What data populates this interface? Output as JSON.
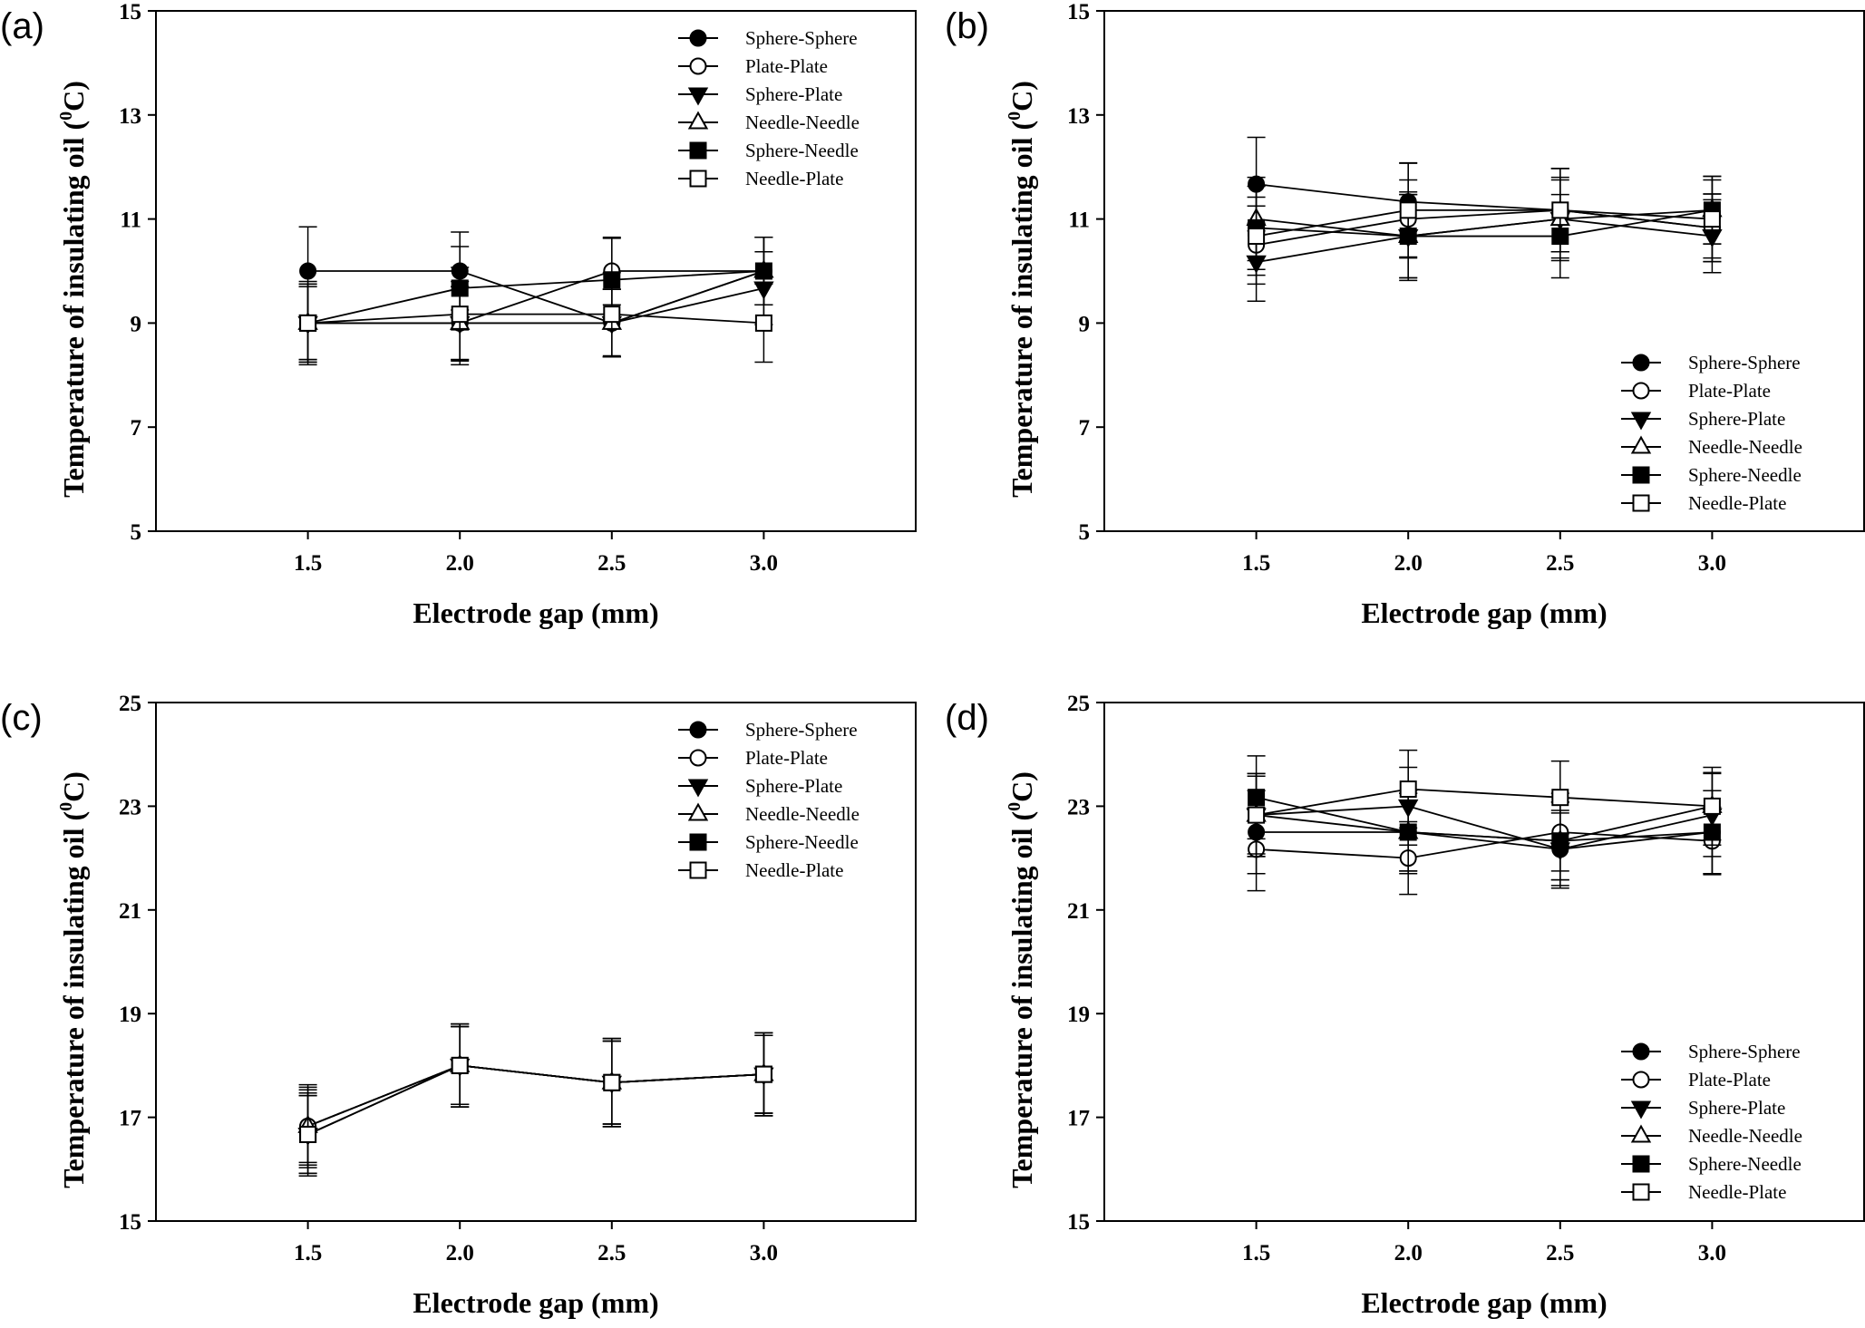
{
  "figure": {
    "panels": [
      "(a)",
      "(b)",
      "(c)",
      "(d)"
    ]
  },
  "chart_data": [
    {
      "panel": "(a)",
      "type": "line",
      "title": "",
      "xlabel": "Electrode gap (mm)",
      "ylabel": "Temperature of insulating oil (",
      "ylabel_sup": "0",
      "ylabel_unit": "C)",
      "xlim": [
        1.0,
        3.5
      ],
      "ylim": [
        5,
        15
      ],
      "x": [
        1.5,
        2.0,
        2.5,
        3.0
      ],
      "x_tick_labels": [
        "1.5",
        "2.0",
        "2.5",
        "3.0"
      ],
      "y_ticks": [
        5,
        7,
        9,
        11,
        13,
        15
      ],
      "y_tick_labels": [
        "5",
        "7",
        "9",
        "11",
        "13",
        "15"
      ],
      "legend_position": "top-right",
      "series": [
        {
          "name": "Sphere-Sphere",
          "marker": "circle-filled",
          "values": [
            10.0,
            10.0,
            9.0,
            10.0
          ],
          "errors": [
            0.85,
            0.75,
            0.65,
            0.65
          ]
        },
        {
          "name": "Plate-Plate",
          "marker": "circle-open",
          "values": [
            9.0,
            9.0,
            10.0,
            10.0
          ],
          "errors": [
            0.8,
            0.7,
            0.65,
            0.65
          ]
        },
        {
          "name": "Sphere-Plate",
          "marker": "triangle-down-filled",
          "values": [
            9.0,
            9.0,
            9.0,
            9.67
          ],
          "errors": [
            0.7,
            0.7,
            0.65,
            0.7
          ]
        },
        {
          "name": "Needle-Needle",
          "marker": "triangle-up-open",
          "values": [
            9.0,
            9.0,
            9.0,
            10.0
          ],
          "errors": [
            0.75,
            0.8,
            0.65,
            0.65
          ]
        },
        {
          "name": "Sphere-Needle",
          "marker": "square-filled",
          "values": [
            9.0,
            9.67,
            9.83,
            10.0
          ],
          "errors": [
            0.7,
            0.8,
            0.8,
            0.65
          ]
        },
        {
          "name": "Needle-Plate",
          "marker": "square-open",
          "values": [
            9.0,
            9.17,
            9.17,
            9.0
          ],
          "errors": [
            0.75,
            0.9,
            0.8,
            0.75
          ]
        }
      ]
    },
    {
      "panel": "(b)",
      "type": "line",
      "title": "",
      "xlabel": "Electrode gap (mm)",
      "ylabel": "Temperature of insulating oil (",
      "ylabel_sup": "0",
      "ylabel_unit": "C)",
      "xlim": [
        1.0,
        3.5
      ],
      "ylim": [
        5,
        15
      ],
      "x": [
        1.5,
        2.0,
        2.5,
        3.0
      ],
      "x_tick_labels": [
        "1.5",
        "2.0",
        "2.5",
        "3.0"
      ],
      "y_ticks": [
        5,
        7,
        9,
        11,
        13,
        15
      ],
      "y_tick_labels": [
        "5",
        "7",
        "9",
        "11",
        "13",
        "15"
      ],
      "legend_position": "bottom-right",
      "series": [
        {
          "name": "Sphere-Sphere",
          "marker": "circle-filled",
          "values": [
            11.67,
            11.33,
            11.17,
            10.83
          ],
          "errors": [
            0.9,
            0.75,
            0.8,
            0.65
          ]
        },
        {
          "name": "Plate-Plate",
          "marker": "circle-open",
          "values": [
            10.5,
            11.0,
            11.17,
            10.83
          ],
          "errors": [
            0.75,
            0.75,
            0.8,
            0.65
          ]
        },
        {
          "name": "Sphere-Plate",
          "marker": "triangle-down-filled",
          "values": [
            10.17,
            10.67,
            11.0,
            10.67
          ],
          "errors": [
            0.75,
            0.8,
            0.8,
            0.7
          ]
        },
        {
          "name": "Needle-Needle",
          "marker": "triangle-up-open",
          "values": [
            11.0,
            10.67,
            11.0,
            11.17
          ],
          "errors": [
            0.8,
            0.8,
            0.75,
            0.65
          ]
        },
        {
          "name": "Sphere-Needle",
          "marker": "square-filled",
          "values": [
            10.83,
            10.67,
            10.67,
            11.17
          ],
          "errors": [
            0.8,
            0.85,
            0.8,
            0.65
          ]
        },
        {
          "name": "Needle-Plate",
          "marker": "square-open",
          "values": [
            10.67,
            11.17,
            11.17,
            11.0
          ],
          "errors": [
            0.75,
            0.9,
            0.8,
            0.75
          ]
        }
      ]
    },
    {
      "panel": "(c)",
      "type": "line",
      "title": "",
      "xlabel": "Electrode gap (mm)",
      "ylabel": "Temperature of insulating oil (",
      "ylabel_sup": "0",
      "ylabel_unit": "C)",
      "xlim": [
        1.0,
        3.5
      ],
      "ylim": [
        15,
        25
      ],
      "x": [
        1.5,
        2.0,
        2.5,
        3.0
      ],
      "x_tick_labels": [
        "1.5",
        "2.0",
        "2.5",
        "3.0"
      ],
      "y_ticks": [
        15,
        17,
        19,
        21,
        23,
        25
      ],
      "y_tick_labels": [
        "15",
        "17",
        "19",
        "21",
        "23",
        "25"
      ],
      "legend_position": "top-right",
      "series": [
        {
          "name": "Sphere-Sphere",
          "marker": "circle-filled",
          "values": [
            16.83,
            18.0,
            17.67,
            17.83
          ],
          "errors": [
            0.75,
            0.8,
            0.85,
            0.8
          ]
        },
        {
          "name": "Plate-Plate",
          "marker": "circle-open",
          "values": [
            16.83,
            18.0,
            17.67,
            17.83
          ],
          "errors": [
            0.7,
            0.75,
            0.8,
            0.75
          ]
        },
        {
          "name": "Sphere-Plate",
          "marker": "triangle-down-filled",
          "values": [
            16.67,
            18.0,
            17.67,
            17.83
          ],
          "errors": [
            0.75,
            0.8,
            0.85,
            0.8
          ]
        },
        {
          "name": "Needle-Needle",
          "marker": "triangle-up-open",
          "values": [
            16.83,
            18.0,
            17.67,
            17.83
          ],
          "errors": [
            0.8,
            0.75,
            0.8,
            0.75
          ]
        },
        {
          "name": "Sphere-Needle",
          "marker": "square-filled",
          "values": [
            16.67,
            18.0,
            17.67,
            17.83
          ],
          "errors": [
            0.75,
            0.8,
            0.8,
            0.8
          ]
        },
        {
          "name": "Needle-Plate",
          "marker": "square-open",
          "values": [
            16.67,
            18.0,
            17.67,
            17.83
          ],
          "errors": [
            0.8,
            0.75,
            0.85,
            0.75
          ]
        }
      ]
    },
    {
      "panel": "(d)",
      "type": "line",
      "title": "",
      "xlabel": "Electrode gap (mm)",
      "ylabel": "Temperature of insulating oil (",
      "ylabel_sup": "0",
      "ylabel_unit": "C)",
      "xlim": [
        1.0,
        3.5
      ],
      "ylim": [
        15,
        25
      ],
      "x": [
        1.5,
        2.0,
        2.5,
        3.0
      ],
      "x_tick_labels": [
        "1.5",
        "2.0",
        "2.5",
        "3.0"
      ],
      "y_ticks": [
        15,
        17,
        19,
        21,
        23,
        25
      ],
      "y_tick_labels": [
        "15",
        "17",
        "19",
        "21",
        "23",
        "25"
      ],
      "legend_position": "bottom-right",
      "series": [
        {
          "name": "Sphere-Sphere",
          "marker": "circle-filled",
          "values": [
            22.5,
            22.5,
            22.17,
            22.5
          ],
          "errors": [
            0.8,
            0.75,
            0.75,
            0.8
          ]
        },
        {
          "name": "Plate-Plate",
          "marker": "circle-open",
          "values": [
            22.17,
            22.0,
            22.5,
            22.33
          ],
          "errors": [
            0.8,
            0.7,
            0.75,
            0.65
          ]
        },
        {
          "name": "Sphere-Plate",
          "marker": "triangle-down-filled",
          "values": [
            22.83,
            23.0,
            22.17,
            22.83
          ],
          "errors": [
            0.8,
            0.75,
            0.7,
            0.8
          ]
        },
        {
          "name": "Needle-Needle",
          "marker": "triangle-up-open",
          "values": [
            22.83,
            22.5,
            22.33,
            23.0
          ],
          "errors": [
            0.75,
            0.8,
            0.75,
            0.65
          ]
        },
        {
          "name": "Sphere-Needle",
          "marker": "square-filled",
          "values": [
            23.17,
            22.5,
            22.33,
            22.5
          ],
          "errors": [
            0.8,
            0.75,
            0.75,
            0.8
          ]
        },
        {
          "name": "Needle-Plate",
          "marker": "square-open",
          "values": [
            22.83,
            23.33,
            23.17,
            23.0
          ],
          "errors": [
            0.8,
            0.75,
            0.7,
            0.75
          ]
        }
      ]
    }
  ]
}
